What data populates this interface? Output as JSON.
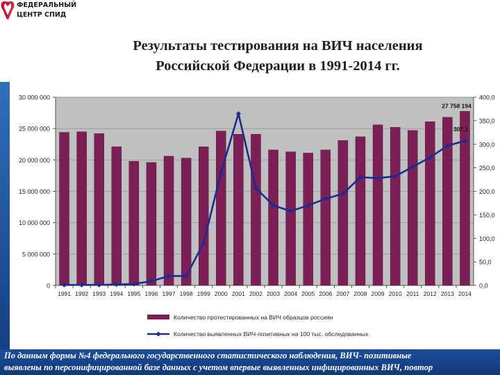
{
  "logo": {
    "line1": "ФЕДЕРАЛЬНЫЙ",
    "line2": "ЦЕНТР СПИД",
    "icon": "red-ribbon-icon",
    "color": "#c8102e"
  },
  "slide_title": {
    "line1": "Результаты тестирования на ВИЧ населения",
    "line2": "Российской Федерации в 1991-2014 гг."
  },
  "footer": {
    "line1": "По данным формы №4 федерального государственного статистического наблюдения, ВИЧ- позитивные",
    "line2": "выявлены по персонифицированной базе данных с учетом впервые выявленных инфицированных ВИЧ, повтор"
  },
  "chart_data": {
    "type": "bar",
    "categories": [
      "1991",
      "1992",
      "1993",
      "1994",
      "1995",
      "1996",
      "1997",
      "1998",
      "1999",
      "2000",
      "2001",
      "2002",
      "2003",
      "2004",
      "2005",
      "2006",
      "2007",
      "2008",
      "2009",
      "2010",
      "2011",
      "2012",
      "2013",
      "2014"
    ],
    "series": [
      {
        "name": "Количество протестированных на ВИЧ образцов россиян",
        "type": "bar",
        "axis": "left",
        "color": "#7b1f56",
        "values": [
          24400000,
          24500000,
          24200000,
          22100000,
          19800000,
          19600000,
          20600000,
          20300000,
          22100000,
          24600000,
          24100000,
          24100000,
          21600000,
          21300000,
          21100000,
          21600000,
          23100000,
          23700000,
          25600000,
          25200000,
          24700000,
          26100000,
          26800000,
          27758194
        ]
      },
      {
        "name": "Количество выявленных ВИЧ-позитивных на 100 тыс. обследованных",
        "type": "line",
        "axis": "right",
        "color": "#1d2b8e",
        "values": [
          1,
          1,
          1,
          2,
          3,
          9,
          20,
          20,
          90,
          240,
          365,
          207,
          170,
          158,
          170,
          184,
          195,
          230,
          228,
          232,
          252,
          272,
          297,
          307.1
        ]
      }
    ],
    "data_labels": [
      {
        "text": "27 758 194"
      },
      {
        "text": "307,1"
      }
    ],
    "y_left": {
      "min": 0,
      "max": 30000000,
      "ticks": [
        "0",
        "5 000 000",
        "10 000 000",
        "15 000 000",
        "20 000 000",
        "25 000 000",
        "30 000 000"
      ]
    },
    "y_right": {
      "min": 0,
      "max": 400,
      "ticks": [
        "0,0",
        "50,0",
        "100,0",
        "150,0",
        "200,0",
        "250,0",
        "300,0",
        "350,0",
        "400,0"
      ]
    },
    "grid": true,
    "plot_background": "#c0c0c0",
    "legend_position": "bottom"
  }
}
